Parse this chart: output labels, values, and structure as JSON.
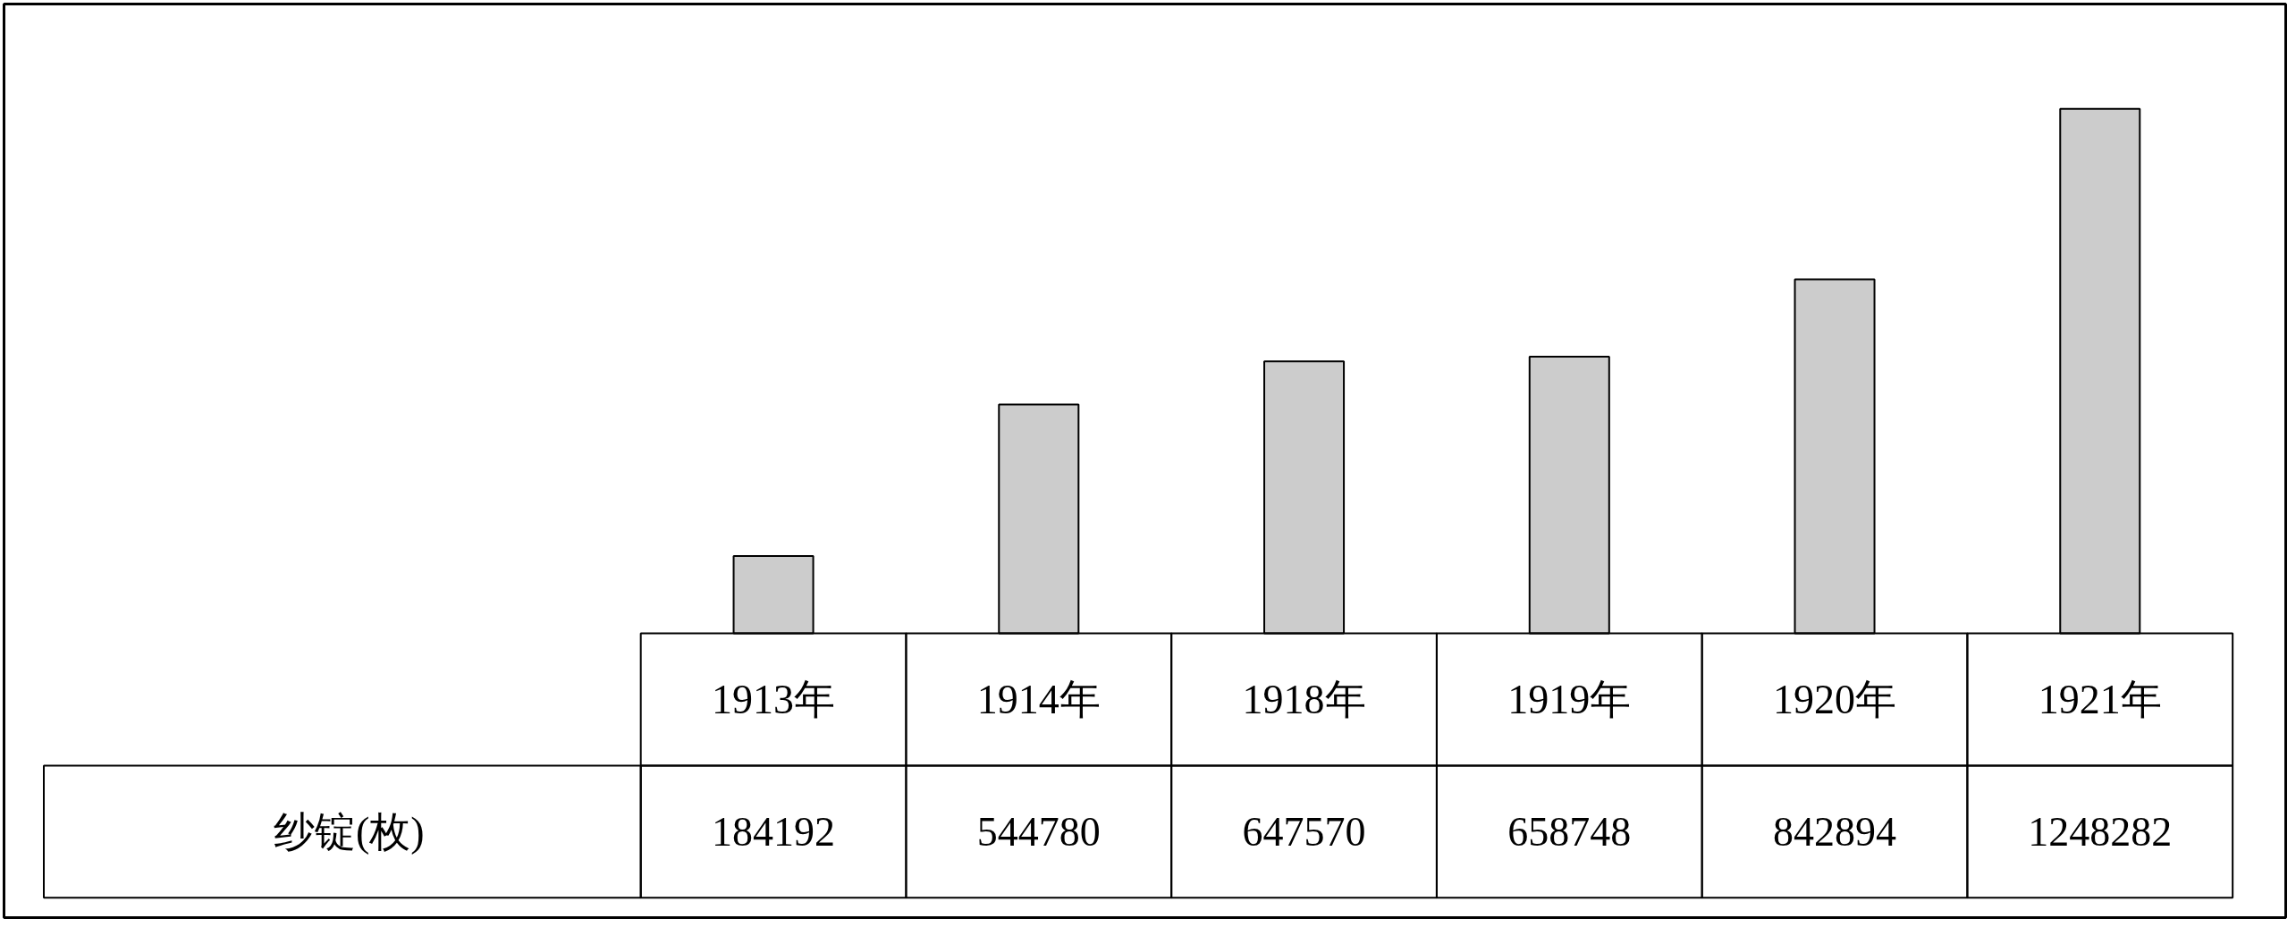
{
  "chart_data": {
    "type": "bar",
    "categories": [
      "1913年",
      "1914年",
      "1918年",
      "1919年",
      "1920年",
      "1921年"
    ],
    "series": [
      {
        "name": "纱锭(枚)",
        "color": "#cccccc",
        "values": [
          184192,
          544780,
          647570,
          658748,
          842894,
          1248282
        ]
      }
    ],
    "data_labels": true
  }
}
